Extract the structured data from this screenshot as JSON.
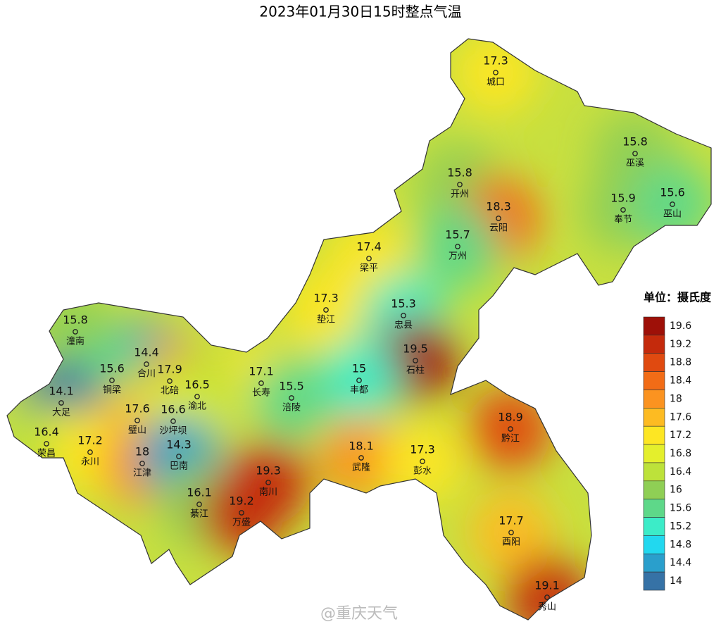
{
  "title": "2023年01月30日15时整点气温",
  "stations": [
    {
      "name": "城口",
      "value": 17.3
    },
    {
      "name": "巫溪",
      "value": 15.8
    },
    {
      "name": "开州",
      "value": 15.8
    },
    {
      "name": "云阳",
      "value": 18.3
    },
    {
      "name": "奉节",
      "value": 15.9
    },
    {
      "name": "巫山",
      "value": 15.6
    },
    {
      "name": "万州",
      "value": 15.7
    },
    {
      "name": "梁平",
      "value": 17.4
    },
    {
      "name": "垫江",
      "value": 17.3
    },
    {
      "name": "忠县",
      "value": 15.3
    },
    {
      "name": "潼南",
      "value": 15.8
    },
    {
      "name": "合川",
      "value": 14.4
    },
    {
      "name": "石柱",
      "value": 19.5
    },
    {
      "name": "北碚",
      "value": 17.9
    },
    {
      "name": "丰都",
      "value": 15
    },
    {
      "name": "长寿",
      "value": 17.1
    },
    {
      "name": "涪陵",
      "value": 15.5
    },
    {
      "name": "渝北",
      "value": 16.5
    },
    {
      "name": "铜梁",
      "value": 15.6
    },
    {
      "name": "大足",
      "value": 14.1
    },
    {
      "name": "璧山",
      "value": 17.6
    },
    {
      "name": "沙坪坝",
      "value": 16.6
    },
    {
      "name": "荣昌",
      "value": 16.4
    },
    {
      "name": "永川",
      "value": 17.2
    },
    {
      "name": "江津",
      "value": 18
    },
    {
      "name": "巴南",
      "value": 14.3
    },
    {
      "name": "黔江",
      "value": 18.9
    },
    {
      "name": "武隆",
      "value": 18.1
    },
    {
      "name": "彭水",
      "value": 17.3
    },
    {
      "name": "南川",
      "value": 19.3
    },
    {
      "name": "綦江",
      "value": 16.1
    },
    {
      "name": "万盛",
      "value": 19.2
    },
    {
      "name": "酉阳",
      "value": 17.7
    },
    {
      "name": "秀山",
      "value": 19.1
    }
  ],
  "legend": {
    "title": "单位：摄氏度",
    "ticks": [
      19.6,
      19.2,
      18.8,
      18.4,
      18,
      17.6,
      17.2,
      16.8,
      16.4,
      16,
      15.6,
      15.2,
      14.8,
      14.4,
      14
    ],
    "colors": [
      "#9e1008",
      "#c42a0c",
      "#e04a10",
      "#f26c16",
      "#fb9320",
      "#fdbb22",
      "#fde623",
      "#e4ef2c",
      "#bde23a",
      "#8fcf55",
      "#5ed889",
      "#3cecc8",
      "#22d8ef",
      "#2a9fcc",
      "#3672a6"
    ]
  },
  "watermark": "@重庆天气"
}
